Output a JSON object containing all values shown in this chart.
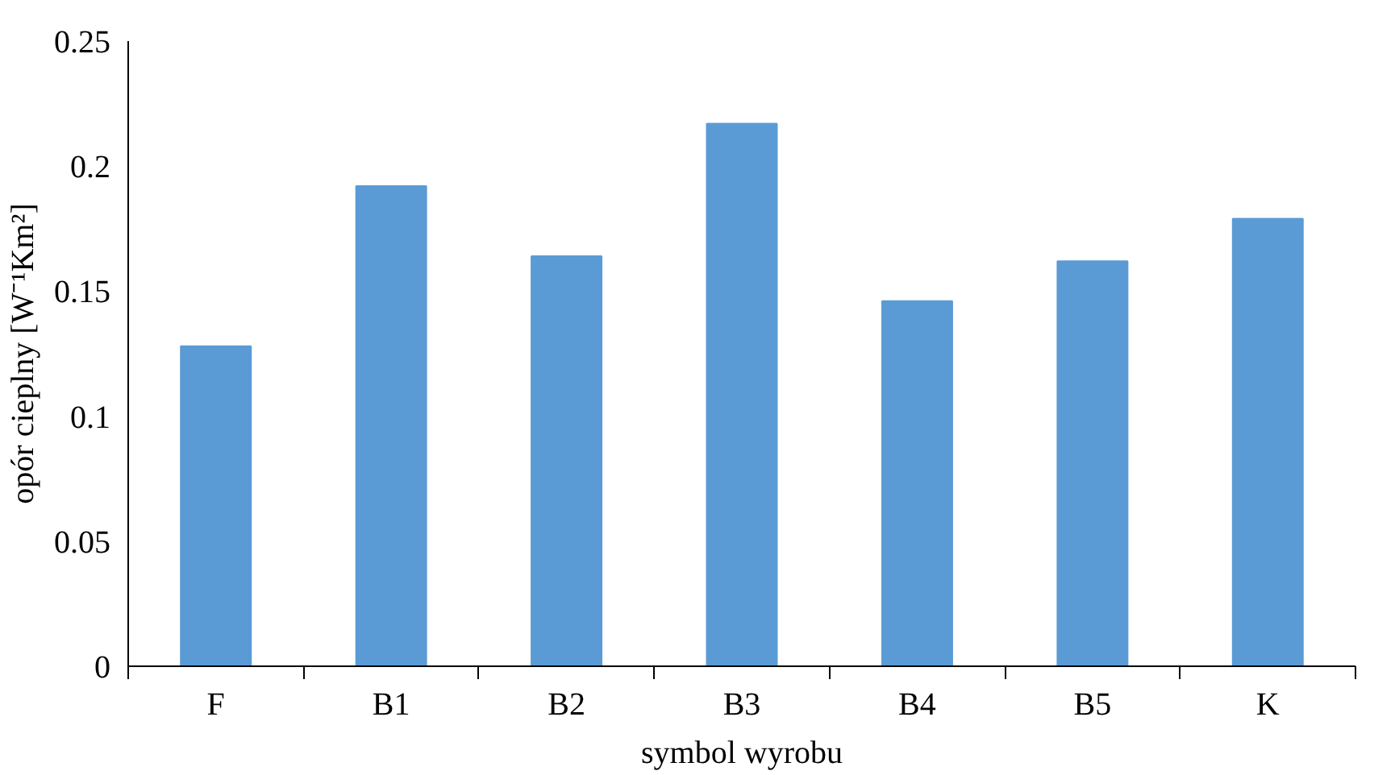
{
  "chart_data": {
    "type": "bar",
    "xlabel": "symbol wyrobu",
    "ylabel": "opór cieplny [W⁻¹Km²]",
    "categories": [
      "F",
      "B1",
      "B2",
      "B3",
      "B4",
      "B5",
      "K"
    ],
    "values": [
      0.128,
      0.192,
      0.164,
      0.217,
      0.146,
      0.162,
      0.179
    ],
    "color": "#5b9bd5",
    "ylim": [
      0,
      0.25
    ],
    "yticks": [
      0,
      0.05,
      0.1,
      0.15,
      0.2,
      0.25
    ],
    "grid": false
  }
}
